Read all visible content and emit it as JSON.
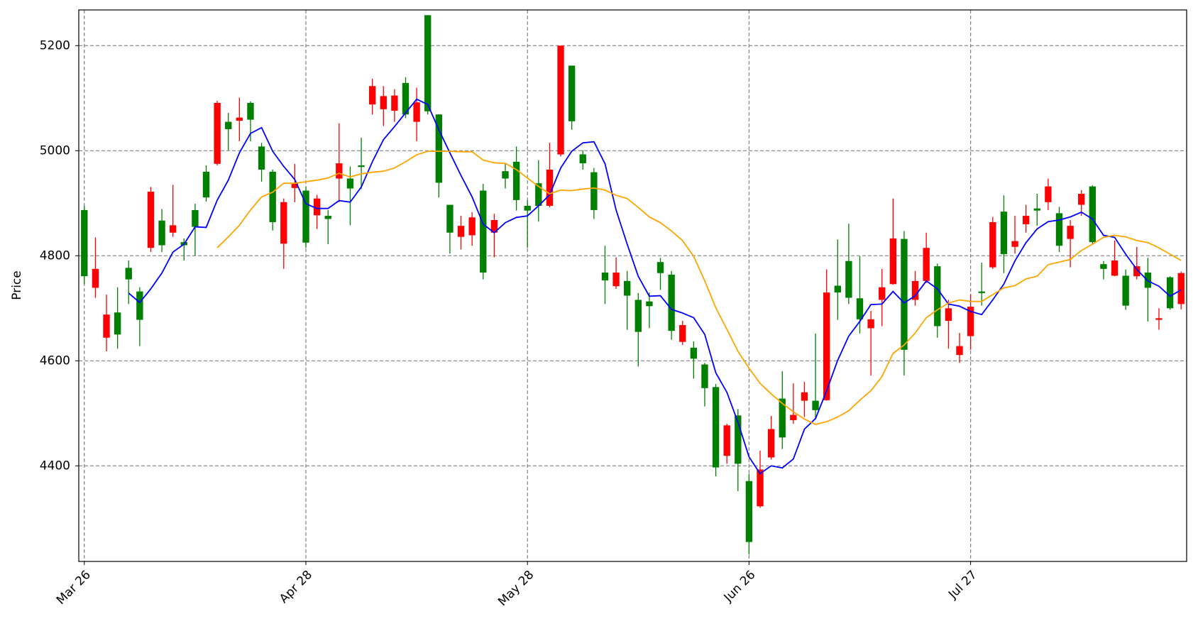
{
  "chart_data": {
    "type": "candlestick",
    "y_label": "Price",
    "categories": [
      "Mar 26",
      null,
      null,
      null,
      null,
      null,
      null,
      null,
      null,
      null,
      null,
      null,
      null,
      null,
      null,
      null,
      null,
      null,
      null,
      null,
      "Apr 28",
      null,
      null,
      null,
      null,
      null,
      null,
      null,
      null,
      null,
      null,
      null,
      null,
      null,
      null,
      null,
      null,
      null,
      null,
      null,
      "May 28",
      null,
      null,
      null,
      null,
      null,
      null,
      null,
      null,
      null,
      null,
      null,
      null,
      null,
      null,
      null,
      null,
      null,
      null,
      null,
      "Jun 26",
      null,
      null,
      null,
      null,
      null,
      null,
      null,
      null,
      null,
      null,
      null,
      null,
      null,
      null,
      null,
      null,
      null,
      null,
      null,
      "Jul 27",
      null,
      null,
      null,
      null,
      null,
      null,
      null,
      null,
      null,
      null,
      null,
      null,
      null,
      null,
      null,
      null,
      null,
      null,
      null
    ],
    "open": [
      4761,
      4775,
      4688,
      4650,
      4755,
      4678,
      4922,
      4820,
      4858,
      4820,
      4855,
      4911,
      5091,
      5041,
      5063,
      5059,
      4964,
      4864,
      4902,
      4938,
      4825,
      4909,
      4870,
      4976,
      4928,
      4969,
      5123,
      5104,
      5105,
      5069,
      5092,
      5075,
      4939,
      4844,
      4857,
      4873,
      4768,
      4868,
      4947,
      4906,
      4886,
      4895,
      4964,
      5200,
      5056,
      4976,
      4887,
      4753,
      4768,
      4724,
      4655,
      4704,
      4767,
      4657,
      4668,
      4604,
      4548,
      4397,
      4477,
      4404,
      4255,
      4393,
      4470,
      4454,
      4497,
      4540,
      4506,
      4730,
      4730,
      4720,
      4679,
      4679,
      4740,
      4833,
      4621,
      4752,
      4815,
      4666,
      4700,
      4628,
      4703,
      4729,
      4864,
      4803,
      4828,
      4876,
      4886,
      4932,
      4819,
      4857,
      4918,
      4826,
      4775,
      4791,
      4705,
      4780,
      4739,
      4681,
      4700,
      4767
    ],
    "high": [
      4895,
      4835,
      4726,
      4740,
      4791,
      4740,
      4931,
      4889,
      4935,
      4833,
      4899,
      4972,
      5095,
      5072,
      5101,
      5094,
      5015,
      4964,
      4909,
      4975,
      4931,
      4916,
      4887,
      5052,
      4970,
      5025,
      5137,
      5123,
      5117,
      5140,
      5120,
      5258,
      5069,
      4897,
      4876,
      4883,
      4937,
      4880,
      4975,
      5008,
      4906,
      4982,
      5015,
      5200,
      5162,
      5001,
      4967,
      4819,
      4797,
      4771,
      4729,
      4730,
      4796,
      4771,
      4676,
      4637,
      4596,
      4556,
      4480,
      4508,
      4385,
      4429,
      4495,
      4580,
      4557,
      4560,
      4652,
      4774,
      4831,
      4861,
      4799,
      4695,
      4775,
      4909,
      4847,
      4771,
      4844,
      4785,
      4716,
      4653,
      4727,
      4787,
      4874,
      4915,
      4876,
      4897,
      4918,
      4947,
      4893,
      4868,
      4925,
      4934,
      4790,
      4829,
      4774,
      4817,
      4796,
      4700,
      4761,
      4770
    ],
    "low": [
      4746,
      4720,
      4618,
      4623,
      4708,
      4628,
      4807,
      4807,
      4836,
      4791,
      4800,
      4903,
      4972,
      5001,
      5018,
      5018,
      4941,
      4848,
      4775,
      4902,
      4815,
      4851,
      4822,
      4902,
      4858,
      4927,
      5069,
      5047,
      5055,
      5062,
      5018,
      5069,
      4911,
      4804,
      4812,
      4819,
      4755,
      4797,
      4928,
      4886,
      4815,
      4865,
      4892,
      4989,
      5040,
      4964,
      4870,
      4708,
      4737,
      4659,
      4589,
      4662,
      4735,
      4640,
      4630,
      4566,
      4513,
      4380,
      4404,
      4352,
      4231,
      4320,
      4412,
      4432,
      4480,
      4493,
      4490,
      4524,
      4678,
      4708,
      4652,
      4572,
      4666,
      4745,
      4572,
      4705,
      4748,
      4644,
      4623,
      4596,
      4621,
      4705,
      4775,
      4767,
      4804,
      4844,
      4857,
      4887,
      4807,
      4778,
      4876,
      4822,
      4755,
      4761,
      4697,
      4755,
      4675,
      4659,
      4697,
      4698
    ],
    "close": [
      4887,
      4739,
      4644,
      4692,
      4777,
      4732,
      4815,
      4867,
      4844,
      4826,
      4887,
      4960,
      4975,
      5055,
      5057,
      5091,
      5008,
      4960,
      4823,
      4929,
      4924,
      4877,
      4876,
      4947,
      4947,
      4972,
      5088,
      5079,
      5076,
      5129,
      5055,
      5258,
      5069,
      4897,
      4836,
      4839,
      4924,
      4844,
      4961,
      4979,
      4895,
      4938,
      4895,
      4993,
      5162,
      4993,
      4959,
      4768,
      4742,
      4752,
      4716,
      4713,
      4788,
      4764,
      4636,
      4625,
      4593,
      4550,
      4419,
      4496,
      4371,
      4323,
      4416,
      4528,
      4487,
      4524,
      4524,
      4525,
      4743,
      4790,
      4719,
      4662,
      4716,
      4746,
      4832,
      4716,
      4752,
      4780,
      4676,
      4611,
      4647,
      4732,
      4778,
      4884,
      4817,
      4860,
      4890,
      4902,
      4881,
      4832,
      4897,
      4932,
      4784,
      4762,
      4762,
      4761,
      4768,
      4678,
      4759,
      4708
    ],
    "up_color": "#008000",
    "down_color": "#ff0000",
    "series": [
      {
        "color": "#0000ff",
        "values": [
          null,
          null,
          null,
          null,
          4729,
          4711,
          4737,
          4767,
          4807,
          4822,
          4855,
          4854,
          4906,
          4944,
          4996,
          5033,
          5044,
          4999,
          4970,
          4945,
          4899,
          4890,
          4890,
          4905,
          4902,
          4931,
          4979,
          5021,
          5046,
          5072,
          5098,
          5088,
          5040,
          4996,
          4953,
          4912,
          4860,
          4844,
          4863,
          4873,
          4876,
          4895,
          4916,
          4967,
          4999,
          5015,
          5017,
          4975,
          4887,
          4822,
          4761,
          4723,
          4724,
          4698,
          4691,
          4682,
          4650,
          4577,
          4540,
          4483,
          4417,
          4385,
          4400,
          4396,
          4413,
          4470,
          4490,
          4543,
          4601,
          4647,
          4675,
          4707,
          4708,
          4732,
          4710,
          4724,
          4752,
          4737,
          4708,
          4704,
          4694,
          4688,
          4716,
          4746,
          4790,
          4825,
          4851,
          4865,
          4868,
          4874,
          4883,
          4870,
          4839,
          4835,
          4803,
          4774,
          4752,
          4742,
          4723,
          4735
        ]
      },
      {
        "color": "#ffa500",
        "values": [
          null,
          null,
          null,
          null,
          null,
          null,
          null,
          null,
          null,
          null,
          null,
          null,
          4815,
          4836,
          4858,
          4887,
          4912,
          4921,
          4938,
          4938,
          4941,
          4944,
          4948,
          4957,
          4950,
          4956,
          4959,
          4961,
          4967,
          4979,
          4992,
          4999,
          4999,
          4999,
          4998,
          4998,
          4982,
          4977,
          4976,
          4964,
          4948,
          4932,
          4918,
          4925,
          4924,
          4927,
          4929,
          4925,
          4915,
          4909,
          4892,
          4874,
          4863,
          4847,
          4829,
          4799,
          4752,
          4701,
          4660,
          4618,
          4586,
          4557,
          4537,
          4519,
          4503,
          4489,
          4479,
          4484,
          4493,
          4505,
          4525,
          4543,
          4570,
          4614,
          4630,
          4653,
          4682,
          4697,
          4710,
          4716,
          4713,
          4713,
          4726,
          4739,
          4743,
          4756,
          4761,
          4783,
          4788,
          4793,
          4810,
          4822,
          4835,
          4839,
          4836,
          4829,
          4825,
          4815,
          4803,
          4791
        ]
      }
    ],
    "xlim": [
      -0.5,
      99.5
    ],
    "ylim": [
      4218,
      5268
    ],
    "yticks": [
      4400,
      4600,
      4800,
      5000,
      5200
    ],
    "grid": true
  }
}
